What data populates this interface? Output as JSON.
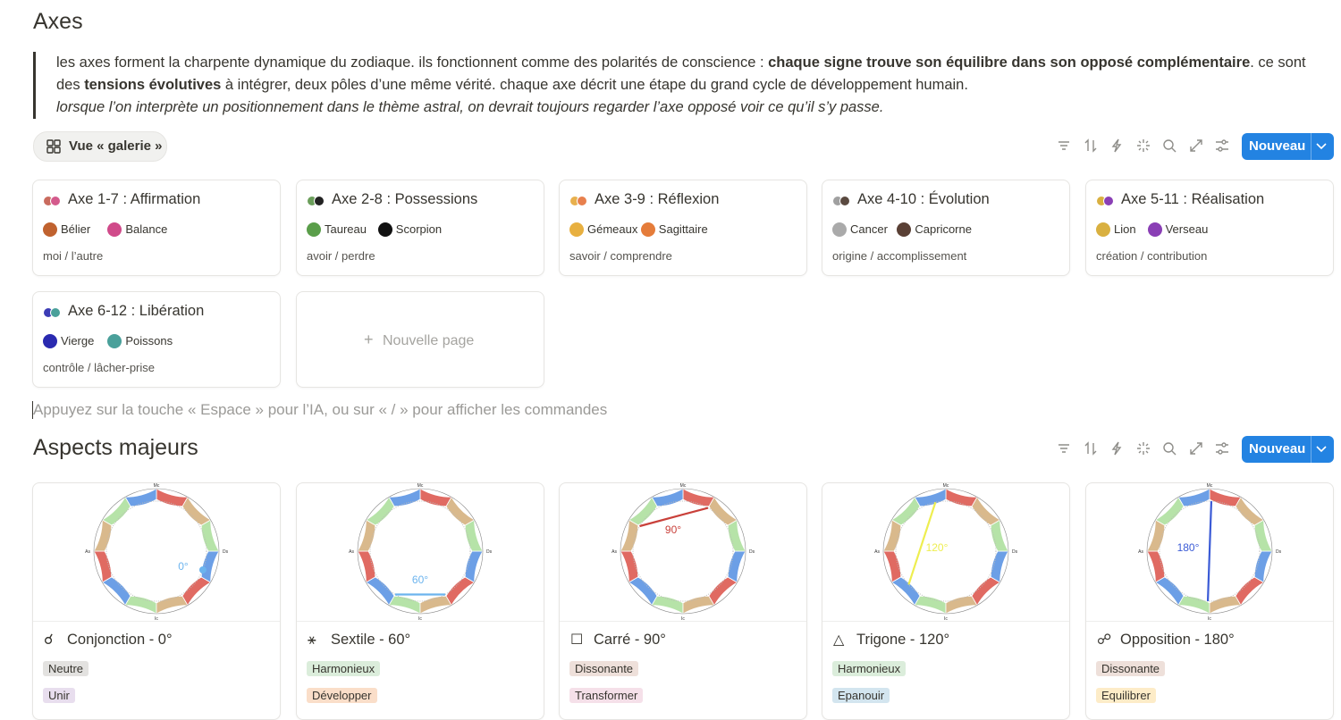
{
  "axes": {
    "title": "Axes",
    "quote": {
      "runs": [
        "les axes forment la charpente dynamique du zodiaque. ils fonctionnent comme des polarités de conscience : ",
        "chaque signe trouve son équilibre dans son opposé complémentaire",
        ". ce sont des ",
        "tensions évolutives",
        " à intégrer, deux pôles d’une même vérité. chaque axe décrit une étape du grand cycle de développement humain."
      ],
      "italic": "lorsque l’on interprète un positionnement dans le thème astral, on devrait toujours regarder l’axe opposé voir ce qu’il s’y passe."
    },
    "view_label": "Vue « galerie »",
    "new_button": "Nouveau",
    "cards": [
      {
        "title": "Axe 1-7 : Affirmation",
        "colors": [
          "#c96b5e",
          "#d45a8c"
        ],
        "signs": [
          {
            "name": "Bélier",
            "color": "#c0622f"
          },
          {
            "name": "Balance",
            "color": "#d04a8a"
          }
        ],
        "subtitle": "moi / l’autre"
      },
      {
        "title": "Axe 2-8 : Possessions",
        "colors": [
          "#6a9e5a",
          "#222222"
        ],
        "signs": [
          {
            "name": "Taureau",
            "color": "#5a9e4a"
          },
          {
            "name": "Scorpion",
            "color": "#111111"
          }
        ],
        "subtitle": "avoir / perdre"
      },
      {
        "title": "Axe 3-9 : Réflexion",
        "colors": [
          "#e8b04d",
          "#e8804d"
        ],
        "signs": [
          {
            "name": "Gémeaux",
            "color": "#e8b040"
          },
          {
            "name": "Sagittaire",
            "color": "#e57c3a"
          }
        ],
        "subtitle": "savoir / comprendre"
      },
      {
        "title": "Axe 4-10 : Évolution",
        "colors": [
          "#a0a0a0",
          "#5a4a40"
        ],
        "signs": [
          {
            "name": "Cancer",
            "color": "#aaaaaa"
          },
          {
            "name": "Capricorne",
            "color": "#5a4035"
          }
        ],
        "subtitle": "origine / accomplissement"
      },
      {
        "title": "Axe 5-11 : Réalisation",
        "colors": [
          "#d9b040",
          "#8a3fb5"
        ],
        "signs": [
          {
            "name": "Lion",
            "color": "#d9b040"
          },
          {
            "name": "Verseau",
            "color": "#8a3fb5"
          }
        ],
        "subtitle": "création / contribution"
      },
      {
        "title": "Axe 6-12 : Libération",
        "colors": [
          "#3c3cb5",
          "#4aa09a"
        ],
        "signs": [
          {
            "name": "Vierge",
            "color": "#2a2ab0"
          },
          {
            "name": "Poissons",
            "color": "#4aa09a"
          }
        ],
        "subtitle": "contrôle / lâcher-prise"
      }
    ],
    "new_page": "Nouvelle page"
  },
  "hint": "Appuyez sur la touche « Espace » pour l’IA, ou sur « / » pour afficher les commandes",
  "aspects": {
    "title": "Aspects majeurs",
    "new_button": "Nouveau",
    "wheel_labels": [
      "Mc",
      "As",
      "Ds",
      "Ic"
    ],
    "cards": [
      {
        "icon": "☌",
        "title": "Conjonction - 0°",
        "angle_label": "0°",
        "color": "#6cb4ee",
        "tags": [
          {
            "text": "Neutre",
            "color": "#e3e2e0"
          },
          {
            "text": "Unir",
            "color": "#e8deee"
          }
        ]
      },
      {
        "icon": "⚹",
        "title": "Sextile - 60°",
        "angle_label": "60°",
        "color": "#6cb4ee",
        "tags": [
          {
            "text": "Harmonieux",
            "color": "#dbeddb"
          },
          {
            "text": "Développer",
            "color": "#fadec9"
          }
        ]
      },
      {
        "icon": "☐",
        "title": "Carré - 90°",
        "angle_label": "90°",
        "color": "#c9403a",
        "tags": [
          {
            "text": "Dissonante",
            "color": "#eee0da"
          },
          {
            "text": "Transformer",
            "color": "#f5e0e9"
          }
        ]
      },
      {
        "icon": "△",
        "title": "Trigone - 120°",
        "angle_label": "120°",
        "color": "#eeee50",
        "tags": [
          {
            "text": "Harmonieux",
            "color": "#dbeddb"
          },
          {
            "text": "Epanouir",
            "color": "#d3e5ef"
          }
        ]
      },
      {
        "icon": "☍",
        "title": "Opposition - 180°",
        "angle_label": "180°",
        "color": "#3b5bd6",
        "tags": [
          {
            "text": "Dissonante",
            "color": "#eee0da"
          },
          {
            "text": "Equilibrer",
            "color": "#fdecc8"
          }
        ]
      }
    ]
  }
}
